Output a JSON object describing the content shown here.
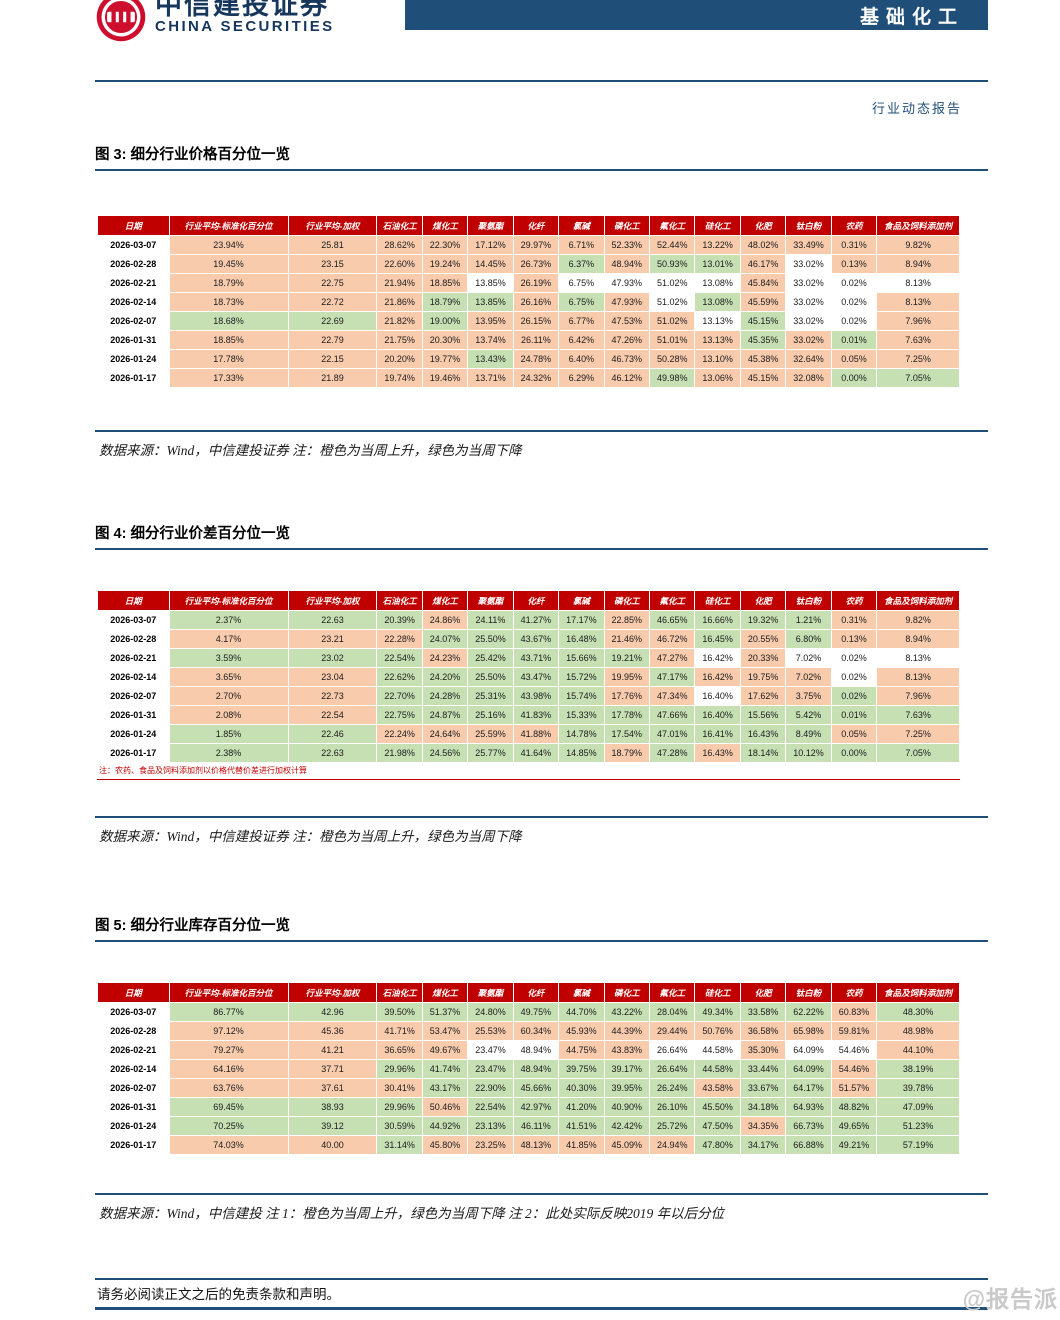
{
  "header": {
    "brand_cn": "中信建投证券",
    "brand_en": "CHINA SECURITIES",
    "category_badge": "基础化工",
    "report_type": "行业动态报告"
  },
  "colors": {
    "accent_navy": "#1F4E79",
    "table_header_red": "#C00000",
    "cell_up_orange": "#F8CBAD",
    "cell_down_green": "#C6E0B4",
    "cell_flat_white": "#FFFFFF"
  },
  "legend": {
    "up": "橙色为当周上升",
    "down": "绿色为当周下降"
  },
  "columns": [
    "日期",
    "行业平均-标准化百分位",
    "行业平均-加权",
    "石油化工",
    "煤化工",
    "聚氨酯",
    "化纤",
    "氯碱",
    "磷化工",
    "氟化工",
    "硅化工",
    "化肥",
    "钛白粉",
    "农药",
    "食品及饲料添加剂"
  ],
  "figures": [
    {
      "title": "图 3: 细分行业价格百分位一览",
      "caption": "数据来源：Wind，中信建投证券 注：橙色为当周上升，绿色为当周下降",
      "footnote": "",
      "rows": [
        {
          "date": "2026-03-07",
          "values": [
            "23.94%",
            "25.81",
            "28.62%",
            "22.30%",
            "17.12%",
            "29.97%",
            "6.71%",
            "52.33%",
            "52.44%",
            "13.22%",
            "48.02%",
            "33.49%",
            "0.31%",
            "9.82%"
          ],
          "colors": [
            "o",
            "o",
            "o",
            "o",
            "o",
            "o",
            "o",
            "o",
            "o",
            "o",
            "o",
            "o",
            "o",
            "o"
          ]
        },
        {
          "date": "2026-02-28",
          "values": [
            "19.45%",
            "23.15",
            "22.60%",
            "19.24%",
            "14.45%",
            "26.73%",
            "6.37%",
            "48.94%",
            "50.93%",
            "13.01%",
            "46.17%",
            "33.02%",
            "0.13%",
            "8.94%"
          ],
          "colors": [
            "o",
            "o",
            "o",
            "o",
            "o",
            "o",
            "g",
            "o",
            "g",
            "g",
            "o",
            "w",
            "o",
            "o"
          ]
        },
        {
          "date": "2026-02-21",
          "values": [
            "18.79%",
            "22.75",
            "21.94%",
            "18.85%",
            "13.85%",
            "26.19%",
            "6.75%",
            "47.93%",
            "51.02%",
            "13.08%",
            "45.84%",
            "33.02%",
            "0.02%",
            "8.13%"
          ],
          "colors": [
            "o",
            "o",
            "o",
            "o",
            "w",
            "o",
            "w",
            "w",
            "w",
            "w",
            "o",
            "w",
            "w",
            "w"
          ]
        },
        {
          "date": "2026-02-14",
          "values": [
            "18.73%",
            "22.72",
            "21.86%",
            "18.79%",
            "13.85%",
            "26.16%",
            "6.75%",
            "47.93%",
            "51.02%",
            "13.08%",
            "45.59%",
            "33.02%",
            "0.02%",
            "8.13%"
          ],
          "colors": [
            "o",
            "o",
            "o",
            "g",
            "g",
            "o",
            "g",
            "o",
            "w",
            "g",
            "o",
            "w",
            "w",
            "o"
          ]
        },
        {
          "date": "2026-02-07",
          "values": [
            "18.68%",
            "22.69",
            "21.82%",
            "19.00%",
            "13.95%",
            "26.15%",
            "6.77%",
            "47.53%",
            "51.02%",
            "13.13%",
            "45.15%",
            "33.02%",
            "0.02%",
            "7.96%"
          ],
          "colors": [
            "g",
            "g",
            "o",
            "g",
            "o",
            "o",
            "o",
            "o",
            "o",
            "w",
            "g",
            "w",
            "w",
            "o"
          ]
        },
        {
          "date": "2026-01-31",
          "values": [
            "18.85%",
            "22.79",
            "21.75%",
            "20.30%",
            "13.74%",
            "26.11%",
            "6.42%",
            "47.26%",
            "51.01%",
            "13.13%",
            "45.35%",
            "33.02%",
            "0.01%",
            "7.63%"
          ],
          "colors": [
            "o",
            "o",
            "o",
            "o",
            "o",
            "o",
            "o",
            "o",
            "o",
            "o",
            "g",
            "o",
            "g",
            "o"
          ]
        },
        {
          "date": "2026-01-24",
          "values": [
            "17.78%",
            "22.15",
            "20.20%",
            "19.77%",
            "13.43%",
            "24.78%",
            "6.40%",
            "46.73%",
            "50.28%",
            "13.10%",
            "45.38%",
            "32.64%",
            "0.05%",
            "7.25%"
          ],
          "colors": [
            "o",
            "o",
            "o",
            "o",
            "g",
            "o",
            "o",
            "o",
            "o",
            "o",
            "o",
            "o",
            "o",
            "o"
          ]
        },
        {
          "date": "2026-01-17",
          "values": [
            "17.33%",
            "21.89",
            "19.74%",
            "19.46%",
            "13.71%",
            "24.32%",
            "6.29%",
            "46.12%",
            "49.98%",
            "13.06%",
            "45.15%",
            "32.08%",
            "0.00%",
            "7.05%"
          ],
          "colors": [
            "o",
            "o",
            "o",
            "o",
            "o",
            "o",
            "o",
            "o",
            "g",
            "o",
            "o",
            "o",
            "g",
            "g"
          ]
        }
      ]
    },
    {
      "title": "图 4: 细分行业价差百分位一览",
      "caption": "数据来源：Wind，中信建投证券 注：橙色为当周上升，绿色为当周下降",
      "footnote": "注：农药、食品及饲料添加剂以价格代替价差进行加权计算",
      "rows": [
        {
          "date": "2026-03-07",
          "values": [
            "2.37%",
            "22.63",
            "20.39%",
            "24.86%",
            "24.11%",
            "41.27%",
            "17.17%",
            "22.85%",
            "46.65%",
            "16.66%",
            "19.32%",
            "1.21%",
            "0.31%",
            "9.82%"
          ],
          "colors": [
            "g",
            "g",
            "g",
            "o",
            "g",
            "g",
            "g",
            "o",
            "g",
            "g",
            "g",
            "g",
            "o",
            "o"
          ]
        },
        {
          "date": "2026-02-28",
          "values": [
            "4.17%",
            "23.21",
            "22.28%",
            "24.07%",
            "25.50%",
            "43.67%",
            "16.48%",
            "21.46%",
            "46.72%",
            "16.45%",
            "20.55%",
            "6.80%",
            "0.13%",
            "8.94%"
          ],
          "colors": [
            "o",
            "o",
            "o",
            "g",
            "g",
            "g",
            "g",
            "o",
            "o",
            "g",
            "o",
            "g",
            "o",
            "o"
          ]
        },
        {
          "date": "2026-02-21",
          "values": [
            "3.59%",
            "23.02",
            "22.54%",
            "24.23%",
            "25.42%",
            "43.71%",
            "15.66%",
            "19.21%",
            "47.27%",
            "16.42%",
            "20.33%",
            "7.02%",
            "0.02%",
            "8.13%"
          ],
          "colors": [
            "g",
            "g",
            "g",
            "o",
            "g",
            "g",
            "g",
            "g",
            "o",
            "w",
            "o",
            "w",
            "w",
            "w"
          ]
        },
        {
          "date": "2026-02-14",
          "values": [
            "3.65%",
            "23.04",
            "22.62%",
            "24.20%",
            "25.50%",
            "43.47%",
            "15.72%",
            "19.95%",
            "47.17%",
            "16.42%",
            "19.75%",
            "7.02%",
            "0.02%",
            "8.13%"
          ],
          "colors": [
            "o",
            "o",
            "g",
            "g",
            "g",
            "g",
            "g",
            "o",
            "g",
            "o",
            "o",
            "o",
            "w",
            "o"
          ]
        },
        {
          "date": "2026-02-07",
          "values": [
            "2.70%",
            "22.73",
            "22.70%",
            "24.28%",
            "25.31%",
            "43.98%",
            "15.74%",
            "17.76%",
            "47.34%",
            "16.40%",
            "17.62%",
            "3.75%",
            "0.02%",
            "7.96%"
          ],
          "colors": [
            "o",
            "o",
            "g",
            "g",
            "g",
            "g",
            "g",
            "o",
            "o",
            "w",
            "o",
            "o",
            "g",
            "o"
          ]
        },
        {
          "date": "2026-01-31",
          "values": [
            "2.08%",
            "22.54",
            "22.75%",
            "24.87%",
            "25.16%",
            "41.83%",
            "15.33%",
            "17.78%",
            "47.66%",
            "16.40%",
            "15.56%",
            "5.42%",
            "0.01%",
            "7.63%"
          ],
          "colors": [
            "o",
            "o",
            "g",
            "g",
            "g",
            "g",
            "g",
            "g",
            "g",
            "g",
            "g",
            "g",
            "g",
            "g"
          ]
        },
        {
          "date": "2026-01-24",
          "values": [
            "1.85%",
            "22.46",
            "22.24%",
            "24.64%",
            "25.59%",
            "41.88%",
            "14.78%",
            "17.54%",
            "47.01%",
            "16.41%",
            "16.43%",
            "8.49%",
            "0.05%",
            "7.25%"
          ],
          "colors": [
            "g",
            "g",
            "o",
            "o",
            "o",
            "o",
            "g",
            "g",
            "g",
            "g",
            "g",
            "g",
            "o",
            "o"
          ]
        },
        {
          "date": "2026-01-17",
          "values": [
            "2.38%",
            "22.63",
            "21.98%",
            "24.56%",
            "25.77%",
            "41.64%",
            "14.85%",
            "18.79%",
            "47.28%",
            "16.43%",
            "18.14%",
            "10.12%",
            "0.00%",
            "7.05%"
          ],
          "colors": [
            "g",
            "g",
            "g",
            "g",
            "g",
            "g",
            "g",
            "o",
            "g",
            "o",
            "g",
            "g",
            "g",
            "g"
          ]
        }
      ]
    },
    {
      "title": "图 5: 细分行业库存百分位一览",
      "caption": "数据来源：Wind，中信建投 注 1：橙色为当周上升，绿色为当周下降 注 2：此处实际反映2019 年以后分位",
      "footnote": "",
      "rows": [
        {
          "date": "2026-03-07",
          "values": [
            "86.77%",
            "42.96",
            "39.50%",
            "51.37%",
            "24.80%",
            "49.75%",
            "44.70%",
            "43.22%",
            "28.04%",
            "49.34%",
            "33.58%",
            "62.22%",
            "60.83%",
            "48.30%"
          ],
          "colors": [
            "g",
            "g",
            "g",
            "g",
            "g",
            "g",
            "g",
            "g",
            "g",
            "g",
            "g",
            "g",
            "o",
            "g"
          ]
        },
        {
          "date": "2026-02-28",
          "values": [
            "97.12%",
            "45.36",
            "41.71%",
            "53.47%",
            "25.53%",
            "60.34%",
            "45.93%",
            "44.39%",
            "29.44%",
            "50.76%",
            "36.58%",
            "65.98%",
            "59.81%",
            "48.98%"
          ],
          "colors": [
            "o",
            "o",
            "o",
            "o",
            "o",
            "o",
            "o",
            "o",
            "o",
            "o",
            "o",
            "o",
            "o",
            "o"
          ]
        },
        {
          "date": "2026-02-21",
          "values": [
            "79.27%",
            "41.21",
            "36.65%",
            "49.67%",
            "23.47%",
            "48.94%",
            "44.75%",
            "43.83%",
            "26.64%",
            "44.58%",
            "35.30%",
            "64.09%",
            "54.46%",
            "44.10%"
          ],
          "colors": [
            "o",
            "o",
            "o",
            "o",
            "w",
            "w",
            "o",
            "o",
            "w",
            "w",
            "o",
            "w",
            "w",
            "o"
          ]
        },
        {
          "date": "2026-02-14",
          "values": [
            "64.16%",
            "37.71",
            "29.96%",
            "41.74%",
            "23.47%",
            "48.94%",
            "39.75%",
            "39.17%",
            "26.64%",
            "44.58%",
            "33.44%",
            "64.09%",
            "54.46%",
            "38.19%"
          ],
          "colors": [
            "o",
            "o",
            "g",
            "g",
            "g",
            "g",
            "g",
            "g",
            "g",
            "g",
            "g",
            "g",
            "o",
            "g"
          ]
        },
        {
          "date": "2026-02-07",
          "values": [
            "63.76%",
            "37.61",
            "30.41%",
            "43.17%",
            "22.90%",
            "45.66%",
            "40.30%",
            "39.95%",
            "26.24%",
            "43.58%",
            "33.67%",
            "64.17%",
            "51.57%",
            "39.78%"
          ],
          "colors": [
            "o",
            "o",
            "o",
            "g",
            "g",
            "g",
            "g",
            "g",
            "g",
            "o",
            "g",
            "g",
            "o",
            "g"
          ]
        },
        {
          "date": "2026-01-31",
          "values": [
            "69.45%",
            "38.93",
            "29.96%",
            "50.46%",
            "22.54%",
            "42.97%",
            "41.20%",
            "40.90%",
            "26.10%",
            "45.50%",
            "34.18%",
            "64.93%",
            "48.82%",
            "47.09%"
          ],
          "colors": [
            "g",
            "g",
            "g",
            "o",
            "g",
            "g",
            "g",
            "g",
            "g",
            "g",
            "g",
            "g",
            "g",
            "g"
          ]
        },
        {
          "date": "2026-01-24",
          "values": [
            "70.25%",
            "39.12",
            "30.59%",
            "44.92%",
            "23.13%",
            "46.11%",
            "41.51%",
            "42.42%",
            "25.72%",
            "47.50%",
            "34.35%",
            "66.73%",
            "49.65%",
            "51.23%"
          ],
          "colors": [
            "g",
            "g",
            "g",
            "g",
            "g",
            "g",
            "g",
            "g",
            "g",
            "g",
            "o",
            "g",
            "g",
            "g"
          ]
        },
        {
          "date": "2026-01-17",
          "values": [
            "74.03%",
            "40.00",
            "31.14%",
            "45.80%",
            "23.25%",
            "48.13%",
            "41.85%",
            "45.09%",
            "24.94%",
            "47.80%",
            "34.17%",
            "66.88%",
            "49.21%",
            "57.19%"
          ],
          "colors": [
            "o",
            "o",
            "g",
            "o",
            "o",
            "o",
            "o",
            "o",
            "o",
            "g",
            "g",
            "g",
            "g",
            "g"
          ]
        }
      ]
    }
  ],
  "footer": {
    "disclaimer": "请务必阅读正文之后的免责条款和声明。",
    "watermark": "@报告派"
  }
}
